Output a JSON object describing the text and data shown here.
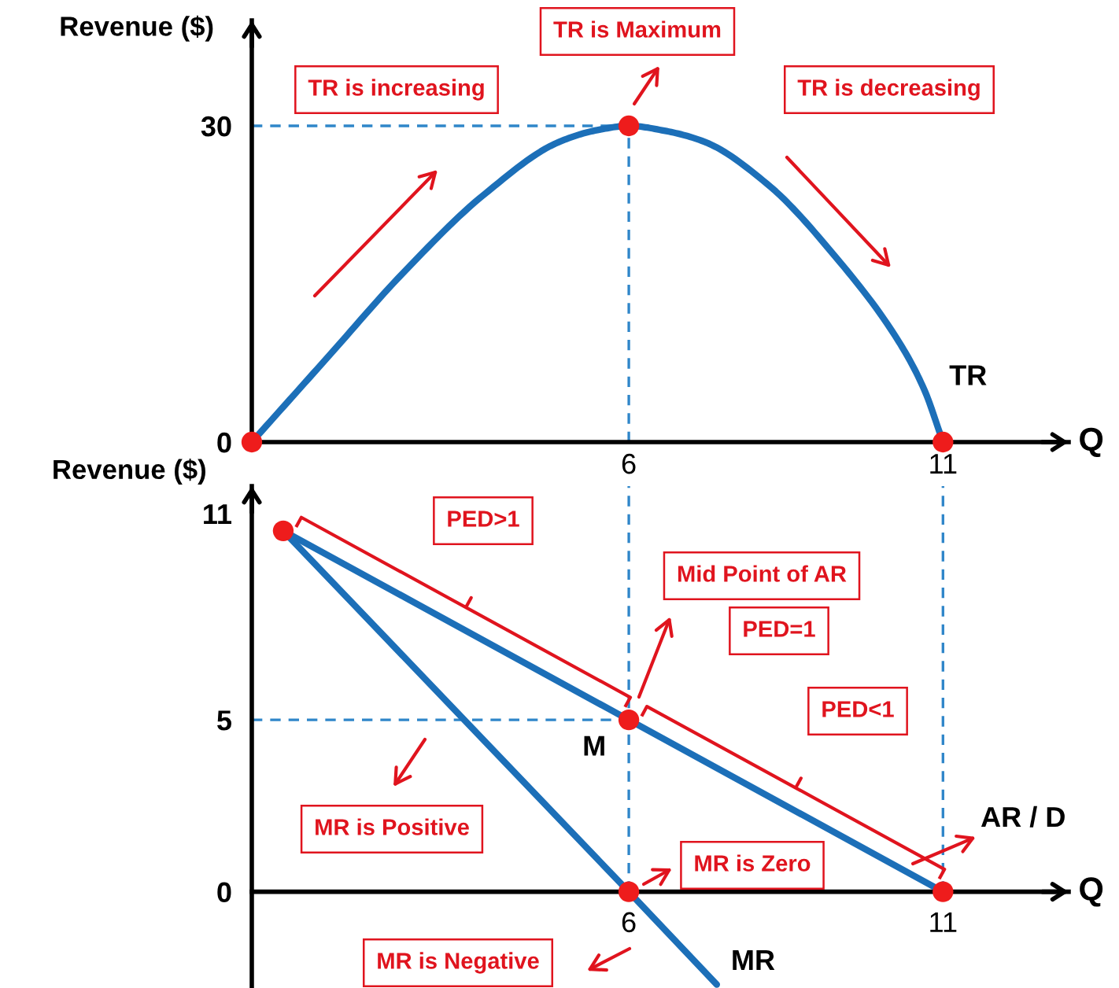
{
  "chart_data": [
    {
      "type": "line",
      "xlabel": "Q",
      "ylabel": "Revenue ($)",
      "xlim": [
        0,
        13
      ],
      "ylim": [
        0,
        40
      ],
      "xticks": [
        6,
        11
      ],
      "yticks": [
        0,
        30
      ],
      "series": [
        {
          "name": "TR",
          "color": "#1c6fb8",
          "x": [
            0,
            1.2,
            2.4,
            3.7,
            4.9,
            5.5,
            6,
            6.6,
            7.2,
            8.2,
            9.3,
            10.3,
            10.7,
            11
          ],
          "values": [
            0,
            8,
            16,
            23.5,
            28.5,
            29.6,
            30,
            29.5,
            28.5,
            24.5,
            17.5,
            9.5,
            5,
            0
          ]
        },
        {
          "type": "scatter",
          "marker": "circle",
          "color": "#ee1c1c",
          "x": [
            0,
            6,
            11
          ],
          "values": [
            0,
            30,
            0
          ]
        },
        {
          "line_style": "dashed",
          "color": "#2f86c9",
          "x": [
            0,
            6
          ],
          "values": [
            30,
            30
          ]
        },
        {
          "line_style": "dashed",
          "color": "#2f86c9",
          "x": [
            6,
            6
          ],
          "values": [
            0,
            30
          ]
        }
      ],
      "annotations": [
        "TR is increasing",
        "TR is Maximum",
        "TR is decreasing"
      ]
    },
    {
      "type": "line",
      "xlabel": "Q",
      "ylabel": "Revenue ($)",
      "xlim": [
        0,
        13
      ],
      "ylim": [
        -2.8,
        11.8
      ],
      "xticks": [
        6,
        11
      ],
      "yticks": [
        0,
        5,
        11
      ],
      "series": [
        {
          "name": "AR / D",
          "color": "#1c6fb8",
          "x": [
            0.5,
            6,
            11
          ],
          "values": [
            10.5,
            5,
            0
          ]
        },
        {
          "name": "MR",
          "color": "#1c6fb8",
          "x": [
            0.5,
            6,
            7.4
          ],
          "values": [
            10.5,
            0,
            -2.7
          ]
        },
        {
          "type": "scatter",
          "marker": "circle",
          "color": "#ee1c1c",
          "x": [
            0.5,
            6,
            6,
            11
          ],
          "values": [
            10.5,
            5,
            0,
            0
          ]
        },
        {
          "line_style": "dashed",
          "color": "#2f86c9",
          "x": [
            0,
            6
          ],
          "values": [
            5,
            5
          ]
        },
        {
          "line_style": "dashed",
          "color": "#2f86c9",
          "x": [
            6,
            6
          ],
          "values": [
            0,
            11.8
          ]
        },
        {
          "line_style": "dashed",
          "color": "#2f86c9",
          "x": [
            11,
            11
          ],
          "values": [
            0,
            11.8
          ]
        }
      ],
      "annotations": [
        "PED>1",
        "Mid Point of AR",
        "PED=1",
        "PED<1",
        "MR is Positive",
        "MR is Zero",
        "MR is Negative",
        {
          "text": "M",
          "x": 6,
          "y": 5
        }
      ]
    }
  ]
}
